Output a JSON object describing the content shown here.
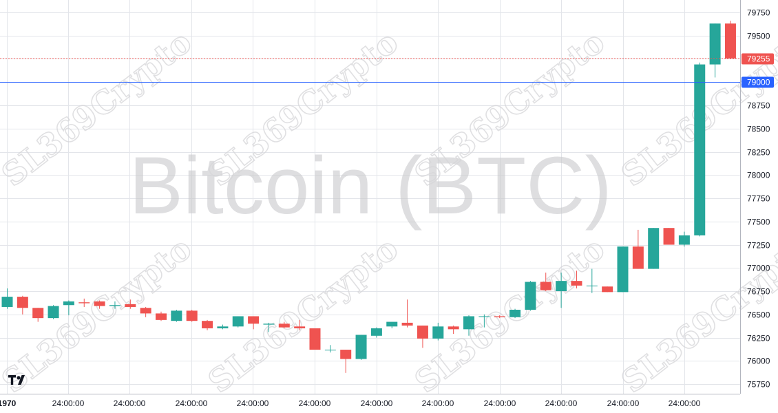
{
  "watermark": {
    "title": "Bitcoin (BTC)",
    "tile": "SL369Crypto"
  },
  "chart_data": {
    "type": "candlestick",
    "title": "",
    "xlabel": "",
    "ylabel": "",
    "ylim": [
      75650,
      79800
    ],
    "y_ticks": [
      75750,
      76000,
      76250,
      76500,
      76750,
      77000,
      77250,
      77500,
      77750,
      78000,
      78250,
      78500,
      78750,
      79000,
      79250,
      79500,
      79750
    ],
    "x_tick_labels": [
      "1970",
      "24:00:00",
      "24:00:00",
      "24:00:00",
      "24:00:00",
      "24:00:00",
      "24:00:00",
      "24:00:00",
      "24:00:00",
      "24:00:00",
      "24:00:00",
      "24:00:00"
    ],
    "grid": true,
    "up_color": "#26a69a",
    "down_color": "#ef5350",
    "candles": [
      {
        "o": 76580,
        "h": 76780,
        "l": 76560,
        "c": 76690
      },
      {
        "o": 76690,
        "h": 76700,
        "l": 76500,
        "c": 76570
      },
      {
        "o": 76570,
        "h": 76570,
        "l": 76420,
        "c": 76460
      },
      {
        "o": 76460,
        "h": 76600,
        "l": 76450,
        "c": 76590
      },
      {
        "o": 76600,
        "h": 76650,
        "l": 76490,
        "c": 76640
      },
      {
        "o": 76630,
        "h": 76670,
        "l": 76580,
        "c": 76620
      },
      {
        "o": 76640,
        "h": 76650,
        "l": 76560,
        "c": 76590
      },
      {
        "o": 76590,
        "h": 76640,
        "l": 76560,
        "c": 76600
      },
      {
        "o": 76610,
        "h": 76660,
        "l": 76560,
        "c": 76580
      },
      {
        "o": 76570,
        "h": 76580,
        "l": 76470,
        "c": 76510
      },
      {
        "o": 76510,
        "h": 76530,
        "l": 76430,
        "c": 76440
      },
      {
        "o": 76430,
        "h": 76550,
        "l": 76420,
        "c": 76540
      },
      {
        "o": 76540,
        "h": 76550,
        "l": 76420,
        "c": 76430
      },
      {
        "o": 76430,
        "h": 76440,
        "l": 76330,
        "c": 76350
      },
      {
        "o": 76350,
        "h": 76390,
        "l": 76340,
        "c": 76370
      },
      {
        "o": 76370,
        "h": 76480,
        "l": 76360,
        "c": 76480
      },
      {
        "o": 76480,
        "h": 76480,
        "l": 76340,
        "c": 76400
      },
      {
        "o": 76390,
        "h": 76410,
        "l": 76310,
        "c": 76400
      },
      {
        "o": 76400,
        "h": 76420,
        "l": 76350,
        "c": 76360
      },
      {
        "o": 76370,
        "h": 76440,
        "l": 76330,
        "c": 76350
      },
      {
        "o": 76350,
        "h": 76350,
        "l": 76120,
        "c": 76120
      },
      {
        "o": 76120,
        "h": 76170,
        "l": 76090,
        "c": 76120
      },
      {
        "o": 76120,
        "h": 76120,
        "l": 75870,
        "c": 76020
      },
      {
        "o": 76020,
        "h": 76280,
        "l": 76010,
        "c": 76280
      },
      {
        "o": 76270,
        "h": 76360,
        "l": 76250,
        "c": 76350
      },
      {
        "o": 76370,
        "h": 76420,
        "l": 76350,
        "c": 76420
      },
      {
        "o": 76410,
        "h": 76660,
        "l": 76360,
        "c": 76380
      },
      {
        "o": 76380,
        "h": 76380,
        "l": 76140,
        "c": 76240
      },
      {
        "o": 76240,
        "h": 76410,
        "l": 76220,
        "c": 76370
      },
      {
        "o": 76370,
        "h": 76380,
        "l": 76290,
        "c": 76340
      },
      {
        "o": 76340,
        "h": 76490,
        "l": 76270,
        "c": 76480
      },
      {
        "o": 76480,
        "h": 76500,
        "l": 76360,
        "c": 76480
      },
      {
        "o": 76480,
        "h": 76490,
        "l": 76460,
        "c": 76470
      },
      {
        "o": 76470,
        "h": 76560,
        "l": 76460,
        "c": 76550
      },
      {
        "o": 76550,
        "h": 76860,
        "l": 76540,
        "c": 76850
      },
      {
        "o": 76850,
        "h": 76950,
        "l": 76750,
        "c": 76760
      },
      {
        "o": 76750,
        "h": 76950,
        "l": 76570,
        "c": 76860
      },
      {
        "o": 76860,
        "h": 76970,
        "l": 76780,
        "c": 76810
      },
      {
        "o": 76810,
        "h": 76990,
        "l": 76730,
        "c": 76810
      },
      {
        "o": 76800,
        "h": 76800,
        "l": 76740,
        "c": 76740
      },
      {
        "o": 76740,
        "h": 77230,
        "l": 76740,
        "c": 77230
      },
      {
        "o": 77230,
        "h": 77410,
        "l": 76990,
        "c": 76990
      },
      {
        "o": 76990,
        "h": 77430,
        "l": 76990,
        "c": 77430
      },
      {
        "o": 77430,
        "h": 77430,
        "l": 77250,
        "c": 77250
      },
      {
        "o": 77250,
        "h": 77390,
        "l": 77230,
        "c": 77350
      },
      {
        "o": 77350,
        "h": 79210,
        "l": 77340,
        "c": 79190
      },
      {
        "o": 79190,
        "h": 79630,
        "l": 79050,
        "c": 79630
      },
      {
        "o": 79630,
        "h": 79660,
        "l": 79255,
        "c": 79255
      }
    ],
    "price_lines": [
      {
        "value": 79255,
        "label": "79255",
        "color": "#ef5350",
        "style": "dotted"
      },
      {
        "value": 79000,
        "label": "79000",
        "color": "#2962ff",
        "style": "solid"
      }
    ]
  }
}
